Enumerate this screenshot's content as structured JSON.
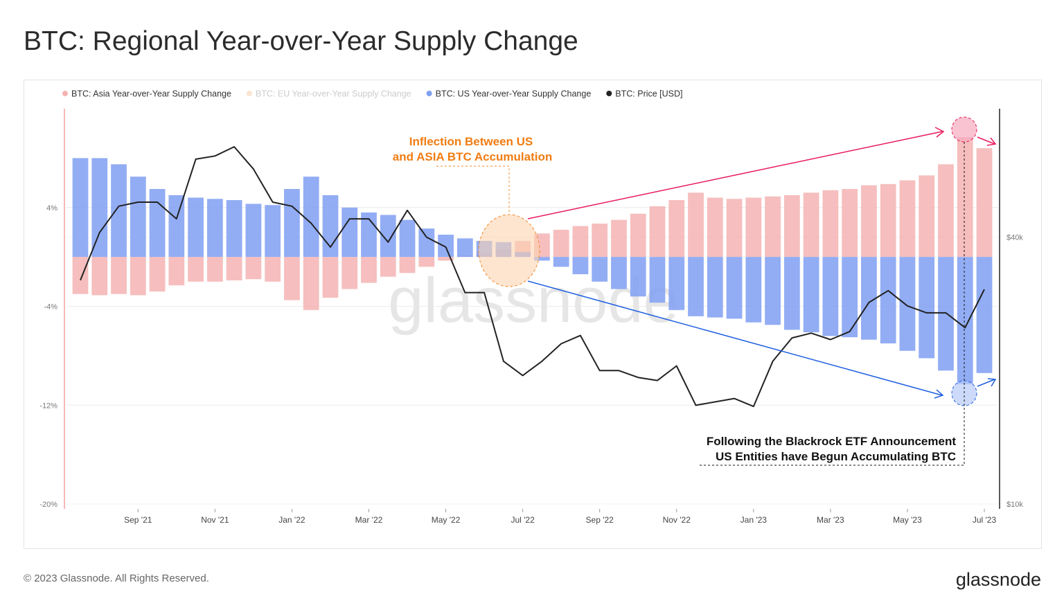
{
  "chart_data": {
    "type": "bar-line",
    "title": "BTC: Regional Year-over-Year Supply Change",
    "annotations": [
      "Inflection Between US",
      "and ASIA BTC Accumulation",
      "Following the Blackrock ETF Announcement",
      "US Entities have Begun Accumulating BTC"
    ],
    "watermark": "glassnode",
    "categories": [
      null,
      null,
      null,
      "Sep '21",
      null,
      null,
      null,
      "Nov '21",
      null,
      null,
      null,
      "Jan '22",
      null,
      null,
      null,
      "Mar '22",
      null,
      null,
      null,
      "May '22",
      null,
      null,
      null,
      "Jul '22",
      null,
      null,
      null,
      "Sep '22",
      null,
      null,
      null,
      "Nov '22",
      null,
      null,
      null,
      "Jan '23",
      null,
      null,
      null,
      "Mar '23",
      null,
      null,
      null,
      "May '23",
      null,
      null,
      null,
      "Jul '23"
    ],
    "series": [
      {
        "name": "BTC: Asia Year-over-Year Supply Change",
        "color": "#f5b3b3",
        "visible": true,
        "values": [
          -3.0,
          -3.1,
          -3.0,
          -3.1,
          -2.8,
          -2.3,
          -2.0,
          -2.0,
          -1.9,
          -1.8,
          -2.0,
          -3.5,
          -4.3,
          -3.3,
          -2.6,
          -2.1,
          -1.6,
          -1.3,
          -0.8,
          -0.3,
          0.1,
          0.3,
          0.6,
          1.3,
          1.9,
          2.2,
          2.5,
          2.7,
          3.0,
          3.5,
          4.1,
          4.6,
          5.2,
          4.8,
          4.7,
          4.8,
          4.9,
          5.0,
          5.2,
          5.4,
          5.5,
          5.8,
          5.9,
          6.2,
          6.6,
          7.5,
          9.7,
          8.8
        ]
      },
      {
        "name": "BTC: EU Year-over-Year Supply Change",
        "color": "#f7c49a",
        "visible": false,
        "values": [
          null,
          null,
          null,
          null,
          null,
          null,
          null,
          null,
          null,
          null,
          null,
          null,
          null,
          null,
          null,
          null,
          null,
          null,
          null,
          null,
          null,
          null,
          null,
          null,
          null,
          null,
          null,
          null,
          null,
          null,
          null,
          null,
          null,
          null,
          null,
          null,
          null,
          null,
          null,
          null,
          null,
          null,
          null,
          null,
          null,
          null,
          null,
          null
        ]
      },
      {
        "name": "BTC: US Year-over-Year Supply Change",
        "color": "#7f9ff2",
        "visible": true,
        "values": [
          8.0,
          8.0,
          7.5,
          6.5,
          5.5,
          5.0,
          4.8,
          4.7,
          4.6,
          4.3,
          4.2,
          5.5,
          6.5,
          5.0,
          4.0,
          3.6,
          3.4,
          3.0,
          2.3,
          1.8,
          1.5,
          1.3,
          1.2,
          0.4,
          -0.3,
          -0.8,
          -1.4,
          -2.0,
          -2.6,
          -3.2,
          -3.7,
          -4.3,
          -4.8,
          -4.9,
          -5.0,
          -5.3,
          -5.5,
          -5.9,
          -6.1,
          -6.4,
          -6.5,
          -6.7,
          -7.0,
          -7.6,
          -8.2,
          -9.2,
          -10.3,
          -9.4
        ]
      },
      {
        "name": "BTC: Price [USD]",
        "color": "#222222",
        "visible": true,
        "axis": "y2",
        "values": [
          32000,
          41000,
          47000,
          48000,
          48000,
          44000,
          60000,
          61000,
          64000,
          57000,
          48000,
          47000,
          43000,
          38000,
          44000,
          44000,
          39000,
          46000,
          40000,
          38000,
          30000,
          30000,
          21000,
          19500,
          21000,
          23000,
          24000,
          20000,
          20000,
          19300,
          19000,
          20500,
          16700,
          17000,
          17300,
          16600,
          21000,
          23700,
          24300,
          23500,
          24500,
          28500,
          30300,
          28000,
          27000,
          27000,
          25000,
          30500
        ]
      }
    ],
    "ylim": [
      -20,
      12
    ],
    "yticks": [
      {
        "value": 4,
        "label": "4%"
      },
      {
        "value": -4,
        "label": "-4%"
      },
      {
        "value": -12,
        "label": "-12%"
      },
      {
        "value": -20,
        "label": "-20%"
      }
    ],
    "y2lim": [
      10000,
      78000
    ],
    "y2log": true,
    "y2ticks": [
      {
        "value": 40000,
        "label": "$40k"
      },
      {
        "value": 10000,
        "label": "$10k"
      }
    ],
    "grid": true
  },
  "footer": {
    "copyright": "© 2023 Glassnode. All Rights Reserved.",
    "logo": "glassnode"
  }
}
